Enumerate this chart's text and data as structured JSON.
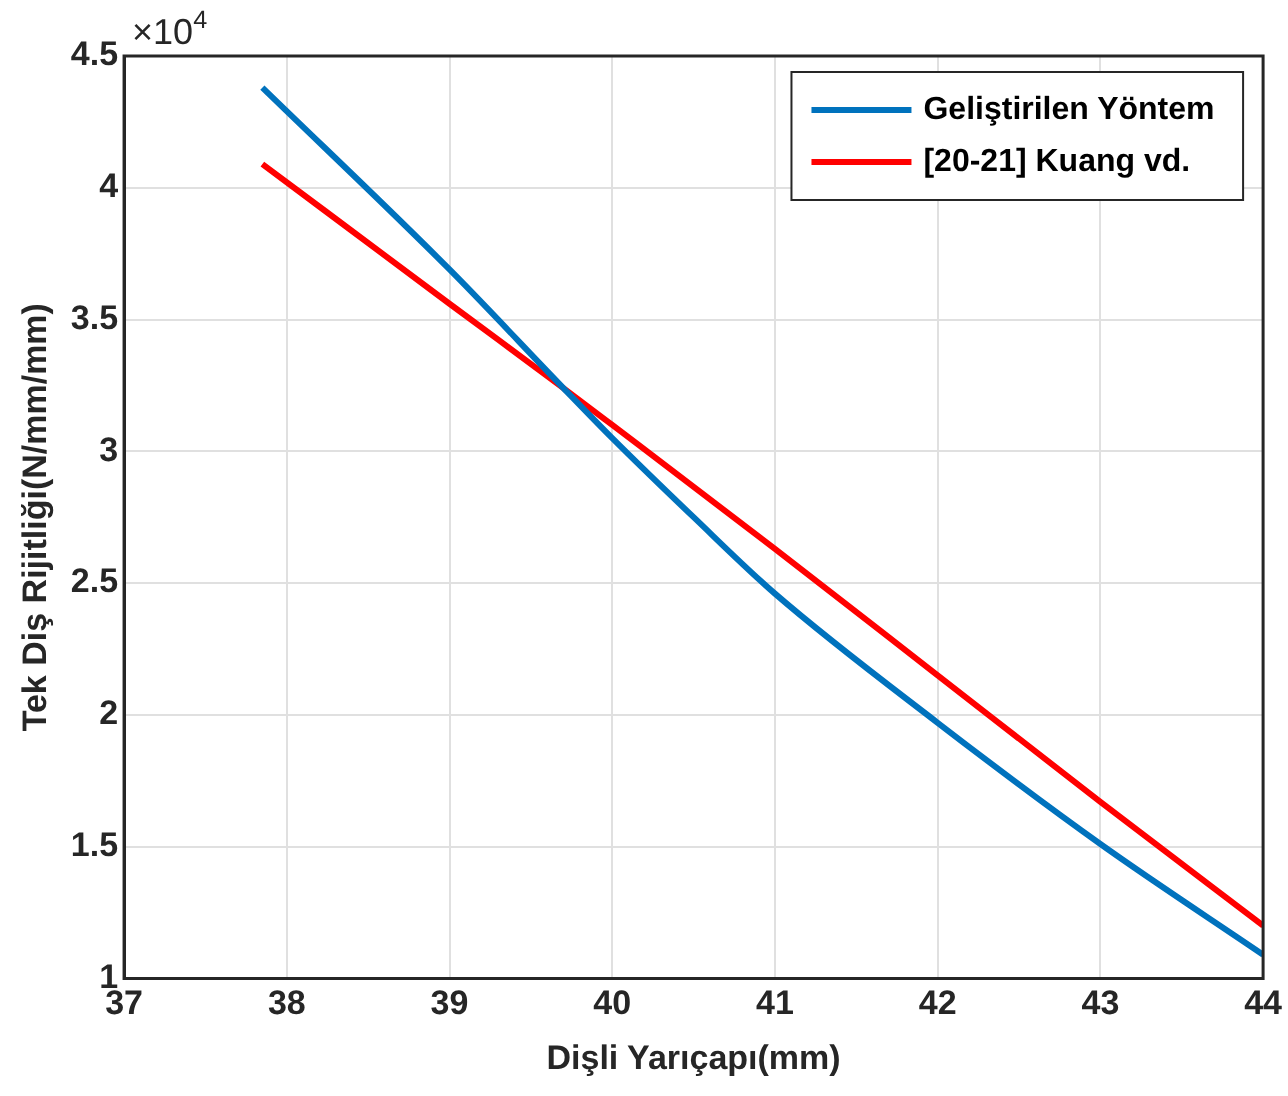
{
  "chart_data": {
    "type": "line",
    "xlabel": "Dişli Yarıçapı(mm)",
    "ylabel": "Tek Diş Rijitliği(N/mm/mm)",
    "annotations": [
      "×10$^{4}$"
    ],
    "series": [
      {
        "name": "Geliştirilen Yöntem",
        "color": "#0072bd",
        "x": [
          37.85,
          39,
          39.7,
          40,
          40.5,
          41,
          42,
          43,
          44
        ],
        "values": [
          4.38,
          3.69,
          3.24,
          3.05,
          2.75,
          2.46,
          1.97,
          1.51,
          1.09
        ]
      },
      {
        "name": "[20-21] Kuang vd.",
        "color": "#ff0000",
        "x": [
          37.85,
          39,
          39.7,
          40,
          41,
          42,
          43,
          44
        ],
        "values": [
          4.09,
          3.56,
          3.24,
          3.1,
          2.63,
          2.15,
          1.67,
          1.2
        ]
      }
    ],
    "xlim": [
      37,
      44
    ],
    "xticks": [
      37,
      38,
      39,
      40,
      41,
      42,
      43,
      44
    ],
    "ylim": [
      1,
      4.5
    ],
    "yticks": [
      1,
      1.5,
      2,
      2.5,
      3,
      3.5,
      4,
      4.5
    ],
    "grid": true,
    "legend": "top right",
    "marker": "none",
    "line_style": "solid"
  }
}
